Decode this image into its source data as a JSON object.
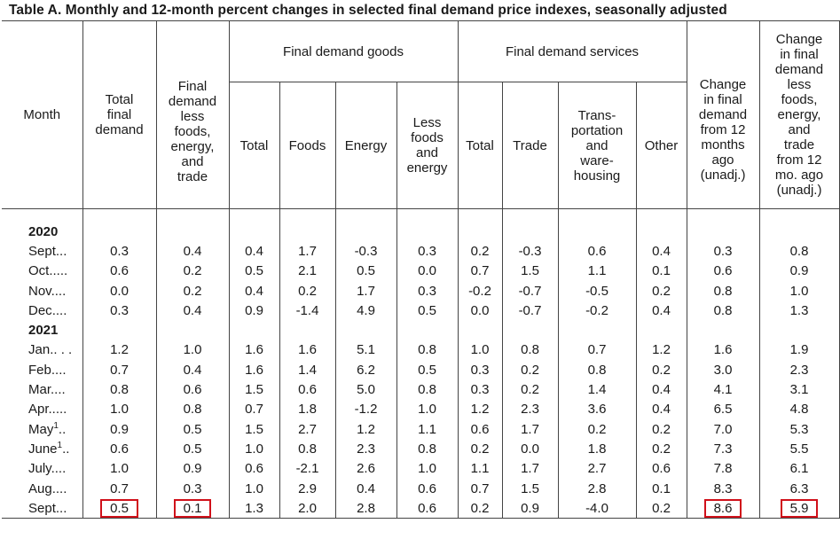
{
  "title": "Table A. Monthly and 12-month percent changes in selected final demand price indexes, seasonally adjusted",
  "headers": {
    "month": "Month",
    "total_final_demand": [
      "Total",
      "final",
      "demand"
    ],
    "fd_less": [
      "Final",
      "demand",
      "less",
      "foods,",
      "energy,",
      "and",
      "trade"
    ],
    "goods_group": "Final demand goods",
    "services_group": "Final demand services",
    "goods": {
      "total": "Total",
      "foods": "Foods",
      "energy": "Energy",
      "less": [
        "Less",
        "foods",
        "and",
        "energy"
      ]
    },
    "services": {
      "total": "Total",
      "trade": "Trade",
      "transport": [
        "Trans-",
        "portation",
        "and",
        "ware-",
        "housing"
      ],
      "other": "Other"
    },
    "change12": [
      "Change",
      "in final",
      "demand",
      "from 12",
      "months",
      "ago",
      "(unadj.)"
    ],
    "change12_less": [
      "Change",
      "in final",
      "demand",
      "less",
      "foods,",
      "energy,",
      "and",
      "trade",
      "from 12",
      "mo. ago",
      "(unadj.)"
    ]
  },
  "years": [
    {
      "year": "2020",
      "rows": [
        {
          "month": "Sept",
          "sup": "",
          "leader": "...",
          "values": [
            "0.3",
            "0.4",
            "0.4",
            "1.7",
            "-0.3",
            "0.3",
            "0.2",
            "-0.3",
            "0.6",
            "0.4",
            "0.3",
            "0.8"
          ]
        },
        {
          "month": "Oct",
          "sup": "",
          "leader": ".....",
          "values": [
            "0.6",
            "0.2",
            "0.5",
            "2.1",
            "0.5",
            "0.0",
            "0.7",
            "1.5",
            "1.1",
            "0.1",
            "0.6",
            "0.9"
          ]
        },
        {
          "month": "Nov",
          "sup": "",
          "leader": "....",
          "values": [
            "0.0",
            "0.2",
            "0.4",
            "0.2",
            "1.7",
            "0.3",
            "-0.2",
            "-0.7",
            "-0.5",
            "0.2",
            "0.8",
            "1.0"
          ]
        },
        {
          "month": "Dec",
          "sup": "",
          "leader": "....",
          "values": [
            "0.3",
            "0.4",
            "0.9",
            "-1.4",
            "4.9",
            "0.5",
            "0.0",
            "-0.7",
            "-0.2",
            "0.4",
            "0.8",
            "1.3"
          ]
        }
      ]
    },
    {
      "year": "2021",
      "rows": [
        {
          "month": "Jan",
          "sup": "",
          "leader": ".. . .",
          "values": [
            "1.2",
            "1.0",
            "1.6",
            "1.6",
            "5.1",
            "0.8",
            "1.0",
            "0.8",
            "0.7",
            "1.2",
            "1.6",
            "1.9"
          ]
        },
        {
          "month": "Feb",
          "sup": "",
          "leader": "....",
          "values": [
            "0.7",
            "0.4",
            "1.6",
            "1.4",
            "6.2",
            "0.5",
            "0.3",
            "0.2",
            "0.8",
            "0.2",
            "3.0",
            "2.3"
          ]
        },
        {
          "month": "Mar",
          "sup": "",
          "leader": "....",
          "values": [
            "0.8",
            "0.6",
            "1.5",
            "0.6",
            "5.0",
            "0.8",
            "0.3",
            "0.2",
            "1.4",
            "0.4",
            "4.1",
            "3.1"
          ]
        },
        {
          "month": "Apr",
          "sup": "",
          "leader": ".....",
          "values": [
            "1.0",
            "0.8",
            "0.7",
            "1.8",
            "-1.2",
            "1.0",
            "1.2",
            "2.3",
            "3.6",
            "0.4",
            "6.5",
            "4.8"
          ]
        },
        {
          "month": "May",
          "sup": "1",
          "leader": "..",
          "values": [
            "0.9",
            "0.5",
            "1.5",
            "2.7",
            "1.2",
            "1.1",
            "0.6",
            "1.7",
            "0.2",
            "0.2",
            "7.0",
            "5.3"
          ]
        },
        {
          "month": "June",
          "sup": "1",
          "leader": "..",
          "values": [
            "0.6",
            "0.5",
            "1.0",
            "0.8",
            "2.3",
            "0.8",
            "0.2",
            "0.0",
            "1.8",
            "0.2",
            "7.3",
            "5.5"
          ]
        },
        {
          "month": "July",
          "sup": "",
          "leader": "....",
          "values": [
            "1.0",
            "0.9",
            "0.6",
            "-2.1",
            "2.6",
            "1.0",
            "1.1",
            "1.7",
            "2.7",
            "0.6",
            "7.8",
            "6.1"
          ]
        },
        {
          "month": "Aug",
          "sup": "",
          "leader": "....",
          "values": [
            "0.7",
            "0.3",
            "1.0",
            "2.9",
            "0.4",
            "0.6",
            "0.7",
            "1.5",
            "2.8",
            "0.1",
            "8.3",
            "6.3"
          ]
        },
        {
          "month": "Sept",
          "sup": "",
          "leader": "...",
          "values": [
            "0.5",
            "0.1",
            "1.3",
            "2.0",
            "2.8",
            "0.6",
            "0.2",
            "0.9",
            "-4.0",
            "0.2",
            "8.6",
            "5.9"
          ]
        }
      ]
    }
  ],
  "highlight_color": "#d0101a"
}
